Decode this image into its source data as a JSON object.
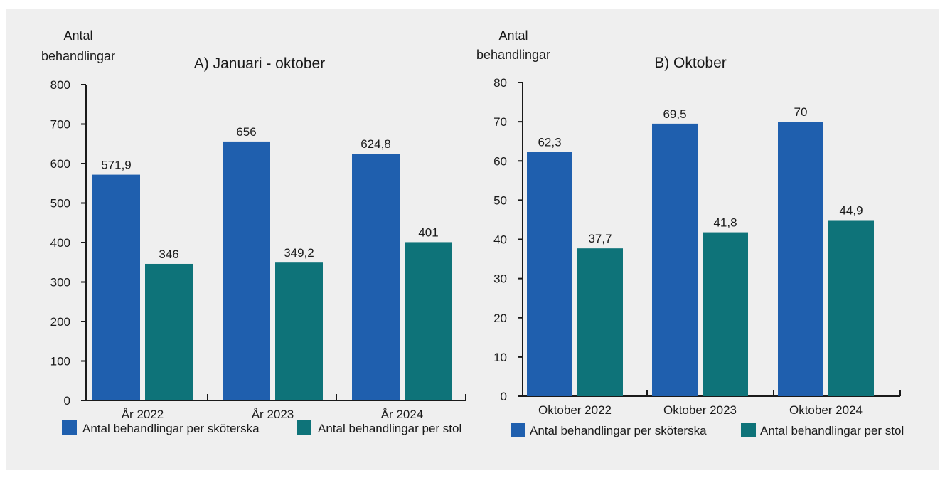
{
  "colors": {
    "per_nurse": "#1f5fae",
    "per_chair": "#0e7379",
    "axis": "#1a1a1a",
    "panel": "#efefef"
  },
  "chart_data": [
    {
      "type": "bar",
      "title": "A) Januari - oktober",
      "ylabel": [
        "Antal",
        "behandlingar"
      ],
      "xlabel": "",
      "ylim": [
        0,
        800
      ],
      "yticks": [
        0,
        100,
        200,
        300,
        400,
        500,
        600,
        700,
        800
      ],
      "categories": [
        "År 2022",
        "År 2023",
        "År 2024"
      ],
      "series": [
        {
          "name": "Antal behandlingar per sköterska",
          "values": [
            571.9,
            656,
            624.8
          ],
          "labels": [
            "571,9",
            "656",
            "624,8"
          ]
        },
        {
          "name": "Antal behandlingar per stol",
          "values": [
            346,
            349.2,
            401
          ],
          "labels": [
            "346",
            "349,2",
            "401"
          ]
        }
      ],
      "legend": "bottom",
      "grid": false
    },
    {
      "type": "bar",
      "title": "B) Oktober",
      "ylabel": [
        "Antal",
        "behandlingar"
      ],
      "xlabel": "",
      "ylim": [
        0,
        80
      ],
      "yticks": [
        0,
        10,
        20,
        30,
        40,
        50,
        60,
        70,
        80
      ],
      "categories": [
        "Oktober 2022",
        "Oktober 2023",
        "Oktober 2024"
      ],
      "series": [
        {
          "name": "Antal behandlingar per sköterska",
          "values": [
            62.3,
            69.5,
            70
          ],
          "labels": [
            "62,3",
            "69,5",
            "70"
          ]
        },
        {
          "name": "Antal behandlingar per stol",
          "values": [
            37.7,
            41.8,
            44.9
          ],
          "labels": [
            "37,7",
            "41,8",
            "44,9"
          ]
        }
      ],
      "legend": "bottom",
      "grid": false
    }
  ]
}
